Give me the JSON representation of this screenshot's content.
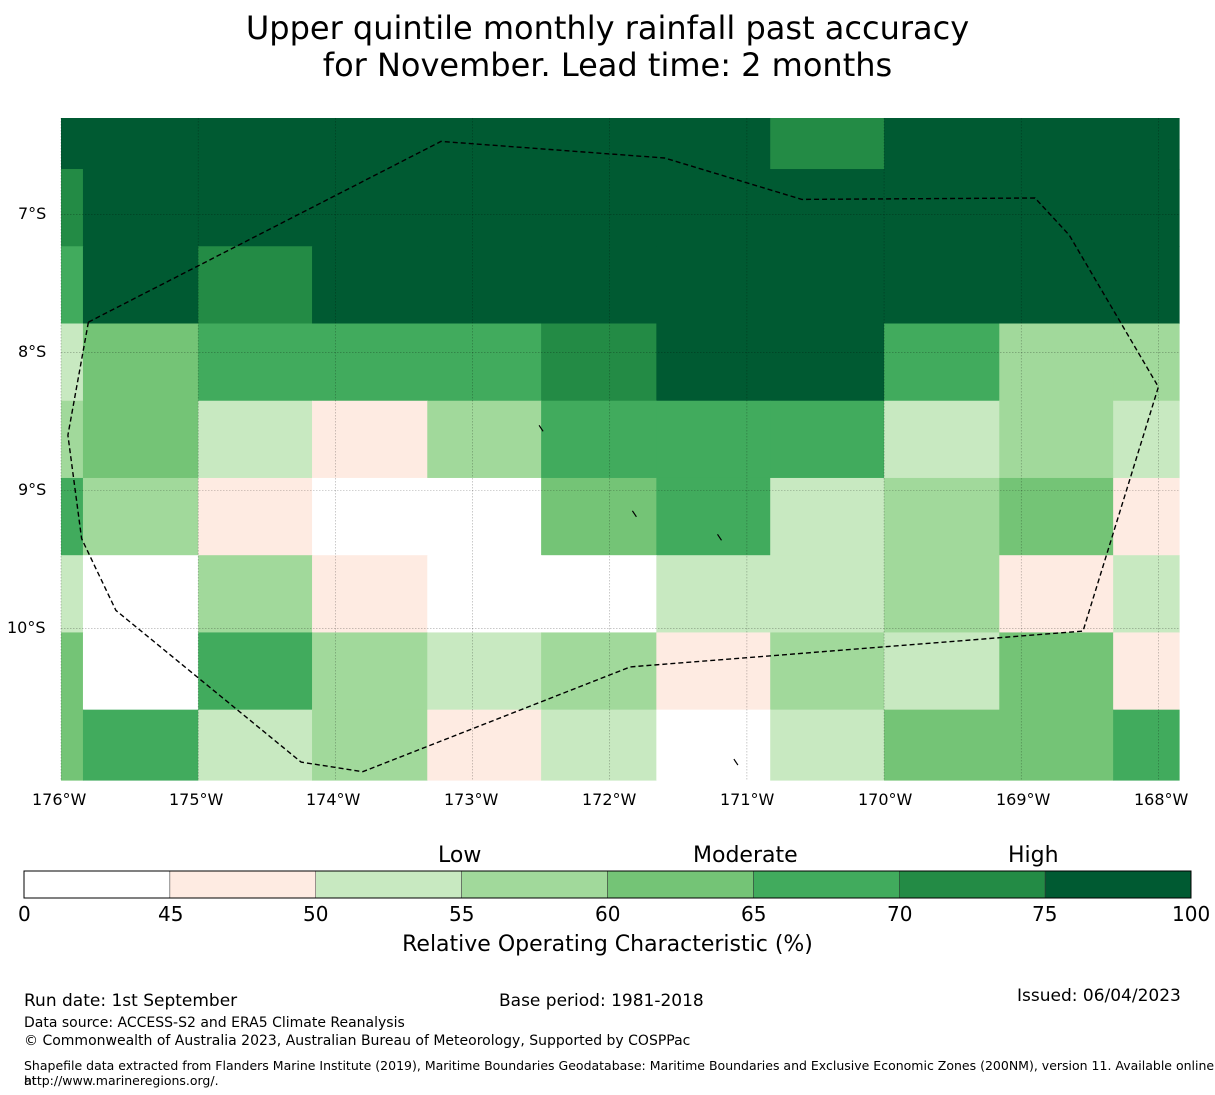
{
  "title": {
    "line1": "Upper quintile monthly rainfall past accuracy",
    "line2": "for November. Lead time: 2 months"
  },
  "chart_data": {
    "type": "heatmap",
    "title": "Upper quintile monthly rainfall past accuracy for November. Lead time: 2 months",
    "x_extent_lon": [
      -176.0,
      -167.85
    ],
    "y_extent_lat": [
      -6.3,
      -11.1
    ],
    "col_edges_lon": [
      -176.0,
      -175.84,
      -175.0,
      -174.17,
      -173.33,
      -172.5,
      -171.66,
      -170.83,
      -170.0,
      -169.16,
      -168.33,
      -167.85
    ],
    "row_edges_lat": [
      -6.3,
      -6.67,
      -7.23,
      -7.79,
      -8.35,
      -8.91,
      -9.47,
      -10.03,
      -10.59,
      -11.1
    ],
    "cell_bins": [
      [
        7,
        7,
        7,
        7,
        7,
        7,
        7,
        6,
        7,
        7,
        7
      ],
      [
        6,
        7,
        7,
        7,
        7,
        7,
        7,
        7,
        7,
        7,
        7
      ],
      [
        5,
        7,
        6,
        7,
        7,
        7,
        7,
        7,
        7,
        7,
        7
      ],
      [
        2,
        4,
        5,
        5,
        5,
        6,
        7,
        7,
        5,
        3,
        3
      ],
      [
        3,
        4,
        2,
        1,
        3,
        5,
        5,
        5,
        2,
        3,
        2
      ],
      [
        5,
        3,
        1,
        0,
        0,
        4,
        5,
        2,
        3,
        4,
        1
      ],
      [
        2,
        0,
        3,
        1,
        0,
        0,
        2,
        2,
        3,
        1,
        2
      ],
      [
        4,
        0,
        5,
        3,
        2,
        3,
        1,
        3,
        2,
        4,
        1
      ],
      [
        4,
        5,
        2,
        3,
        1,
        2,
        0,
        2,
        4,
        4,
        5
      ]
    ],
    "x_ticks": [
      "176°W",
      "175°W",
      "174°W",
      "173°W",
      "172°W",
      "171°W",
      "170°W",
      "169°W",
      "168°W"
    ],
    "x_tick_values": [
      -176,
      -175,
      -174,
      -173,
      -172,
      -171,
      -170,
      -169,
      -168
    ],
    "y_ticks": [
      "7°S",
      "8°S",
      "9°S",
      "10°S"
    ],
    "y_tick_values": [
      -7,
      -8,
      -9,
      -10
    ],
    "boundary_lonlat": [
      [
        -175.8,
        -7.78
      ],
      [
        -173.23,
        -6.47
      ],
      [
        -171.6,
        -6.59
      ],
      [
        -170.6,
        -6.89
      ],
      [
        -168.9,
        -6.88
      ],
      [
        -168.65,
        -7.15
      ],
      [
        -168.0,
        -8.25
      ],
      [
        -168.55,
        -10.02
      ],
      [
        -171.85,
        -10.28
      ],
      [
        -173.8,
        -11.04
      ],
      [
        -174.25,
        -10.97
      ],
      [
        -175.6,
        -9.87
      ],
      [
        -175.85,
        -9.35
      ],
      [
        -175.95,
        -8.6
      ],
      [
        -175.8,
        -7.78
      ]
    ],
    "islets_lonlat": [
      [
        -172.5,
        -8.55
      ],
      [
        -171.82,
        -9.17
      ],
      [
        -171.2,
        -9.34
      ],
      [
        -171.08,
        -10.97
      ]
    ],
    "colorbar": {
      "label": "Relative Operating Characteristic (%)",
      "bounds": [
        0,
        45,
        50,
        55,
        60,
        65,
        70,
        75,
        100
      ],
      "tick_labels": [
        "0",
        "45",
        "50",
        "55",
        "60",
        "65",
        "70",
        "75",
        "100"
      ],
      "colors": [
        "#ffffff",
        "#feebe2",
        "#c8e9c1",
        "#a1d99b",
        "#74c476",
        "#41ab5d",
        "#238b45",
        "#005a32"
      ],
      "categories": [
        "Low",
        "Moderate",
        "High"
      ]
    }
  },
  "footer": {
    "run_date": "Run date: 1st September",
    "base_period": "Base period: 1981-2018",
    "issued": "Issued: 06/04/2023",
    "data_source": "Data source: ACCESS-S2 and ERA5 Climate Reanalysis",
    "copyright": "© Commonwealth of Australia 2023, Australian Bureau of Meteorology, Supported by COSPPac",
    "shapefile_line1": "Shapefile data extracted from Flanders Marine Institute (2019), Maritime Boundaries Geodatabase: Maritime Boundaries and Exclusive Economic Zones (200NM), version 11. Available online at",
    "shapefile_line2": "http://www.marineregions.org/."
  }
}
